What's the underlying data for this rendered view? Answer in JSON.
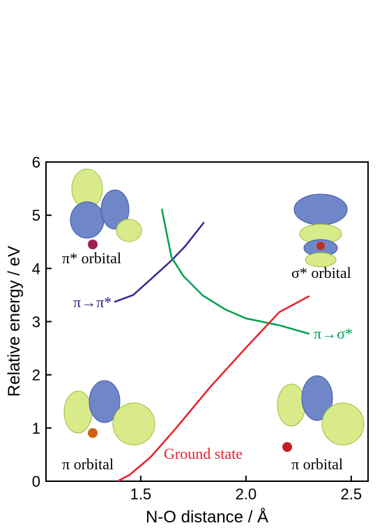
{
  "chart_data": {
    "type": "line",
    "x_label": "N-O distance / Å",
    "y_label": "Relative energy / eV",
    "xlim": [
      1.05,
      2.58
    ],
    "ylim": [
      0,
      6
    ],
    "xticks": [
      1.5,
      {
        "value": 2.0,
        "label": "2.0"
      },
      2.5
    ],
    "yticks": [
      0,
      1,
      2,
      3,
      4,
      5,
      6
    ],
    "series": [
      {
        "name": "π→π*",
        "color": "#2e2a8c",
        "x": [
          1.375,
          1.464,
          1.546,
          1.646,
          1.712,
          1.801
        ],
        "values": [
          3.37,
          3.5,
          3.79,
          4.15,
          4.42,
          4.87
        ]
      },
      {
        "name": "π→σ*",
        "color": "#00a050",
        "x": [
          1.6,
          1.646,
          1.702,
          1.795,
          1.901,
          2.0,
          2.159,
          2.301
        ],
        "values": [
          5.12,
          4.21,
          3.86,
          3.49,
          3.23,
          3.06,
          2.93,
          2.77
        ]
      },
      {
        "name": "Ground state",
        "color": "#e8202a",
        "x": [
          1.39,
          1.447,
          1.546,
          1.662,
          1.828,
          2.0,
          2.159,
          2.301
        ],
        "values": [
          0.0,
          0.12,
          0.45,
          0.97,
          1.76,
          2.51,
          3.18,
          3.48
        ]
      }
    ],
    "annotations": [
      "π* orbital",
      "σ* orbital",
      "π orbital",
      "π orbital"
    ]
  }
}
